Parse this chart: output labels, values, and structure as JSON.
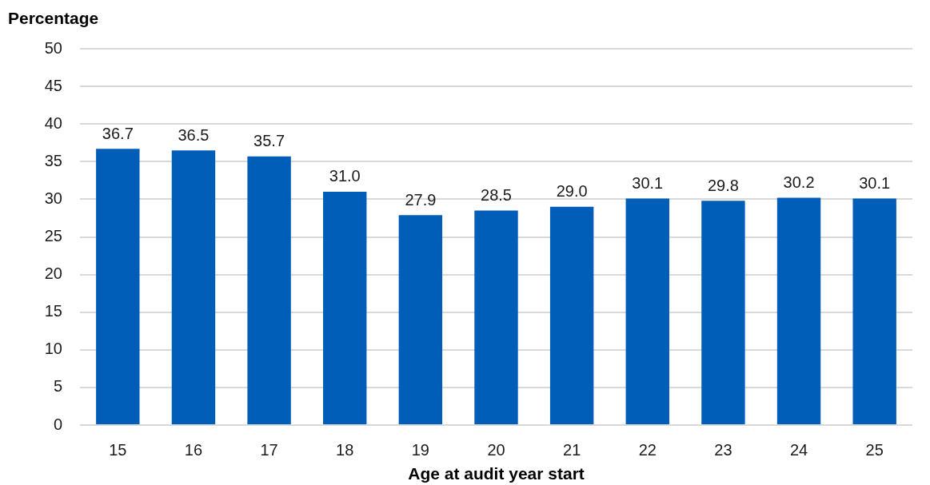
{
  "chart_data": {
    "type": "bar",
    "ylabel": "Percentage",
    "xlabel": "Age at audit year start",
    "categories": [
      "15",
      "16",
      "17",
      "18",
      "19",
      "20",
      "21",
      "22",
      "23",
      "24",
      "25"
    ],
    "values": [
      36.7,
      36.5,
      35.7,
      31.0,
      27.9,
      28.5,
      29.0,
      30.1,
      29.8,
      30.2,
      30.1
    ],
    "value_labels": [
      "36.7",
      "36.5",
      "35.7",
      "31.0",
      "27.9",
      "28.5",
      "29.0",
      "30.1",
      "29.8",
      "30.2",
      "30.1"
    ],
    "color": "#005eb8",
    "ylim": [
      0,
      50
    ],
    "yticks": [
      0,
      5,
      10,
      15,
      20,
      25,
      30,
      35,
      40,
      45,
      50
    ],
    "grid": "y"
  }
}
